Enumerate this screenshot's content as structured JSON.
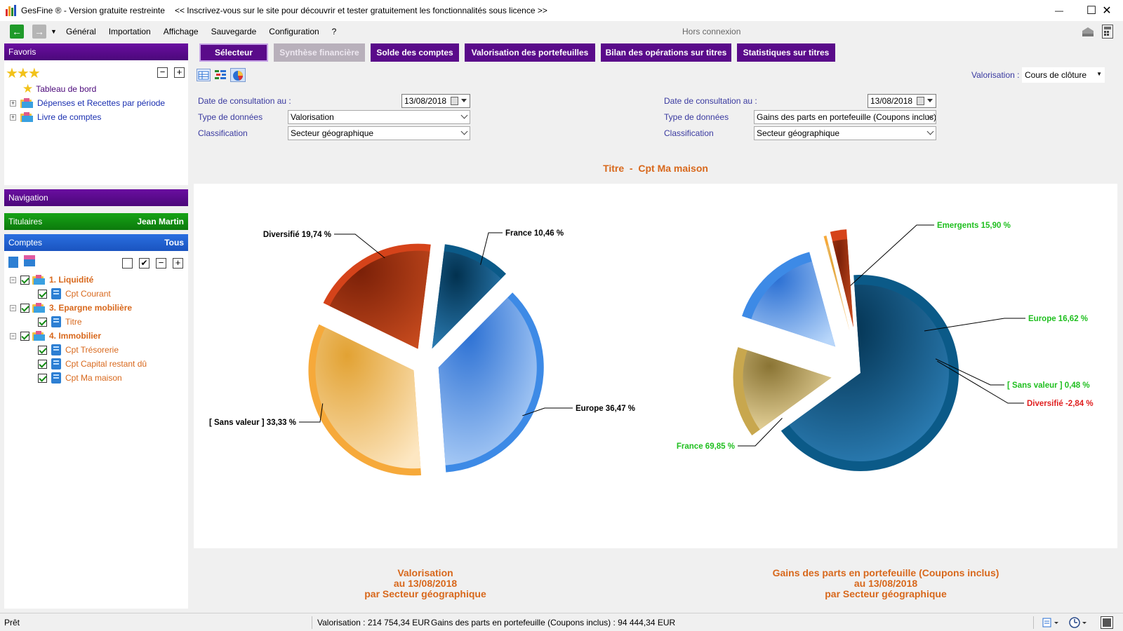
{
  "window": {
    "title": "GesFine ® - Version gratuite restreinte",
    "promo": "<< Inscrivez-vous sur le site pour découvrir et tester gratuitement les fonctionnalités sous licence >>",
    "minimize": "—",
    "maximize": "☐",
    "close": "✕"
  },
  "menu": {
    "items": [
      "Général",
      "Importation",
      "Affichage",
      "Sauvegarde",
      "Configuration",
      "?"
    ],
    "status": "Hors connexion"
  },
  "favoris": {
    "header": "Favoris",
    "items": [
      {
        "label": "Tableau de bord"
      },
      {
        "label": "Dépenses et Recettes par période"
      },
      {
        "label": "Livre de comptes"
      }
    ]
  },
  "navigation": {
    "header": "Navigation"
  },
  "titulaires": {
    "label": "Titulaires",
    "value": "Jean Martin"
  },
  "comptes": {
    "label": "Comptes",
    "value": "Tous",
    "groups": [
      {
        "label": "1. Liquidité",
        "accounts": [
          "Cpt Courant"
        ]
      },
      {
        "label": "3. Epargne mobilière",
        "accounts": [
          "Titre"
        ]
      },
      {
        "label": "4. Immobilier",
        "accounts": [
          "Cpt Trésorerie",
          "Cpt Capital restant dû",
          "Cpt Ma maison"
        ]
      }
    ]
  },
  "tabs": [
    "Sélecteur",
    "Synthèse financière",
    "Solde des comptes",
    "Valorisation des portefeuilles",
    "Bilan des opérations sur titres",
    "Statistiques sur titres"
  ],
  "valorisation": {
    "label": "Valorisation :",
    "value": "Cours de clôture"
  },
  "filters_left": {
    "date_label": "Date de consultation au :",
    "date": "13/08/2018",
    "type_label": "Type de données",
    "type": "Valorisation",
    "class_label": "Classification",
    "class": "Secteur géographique"
  },
  "filters_right": {
    "date_label": "Date de consultation au :",
    "date": "13/08/2018",
    "type_label": "Type de données",
    "type": "Gains des parts en portefeuille (Coupons inclus)",
    "class_label": "Classification",
    "class": "Secteur géographique"
  },
  "chart_title": "Titre  -  Cpt Ma maison",
  "chart_data": [
    {
      "type": "pie",
      "slices": [
        {
          "label": "France",
          "value": 10.46,
          "display": "France  10,46 %",
          "color": "#0b5a88",
          "label_color": "#000000"
        },
        {
          "label": "Europe",
          "value": 36.47,
          "display": "Europe  36,47 %",
          "color": "#3d8ae6",
          "label_color": "#000000"
        },
        {
          "label": "[ Sans valeur ]",
          "value": 33.33,
          "display": "[ Sans valeur ]  33,33 %",
          "color": "#f6a93a",
          "label_color": "#000000"
        },
        {
          "label": "Diversifié",
          "value": 19.74,
          "display": "Diversifié  19,74 %",
          "color": "#d5431a",
          "label_color": "#000000"
        }
      ]
    },
    {
      "type": "pie",
      "slices": [
        {
          "label": "France",
          "value": 69.85,
          "display": "France  69,85 %",
          "color": "#0b5a88",
          "label_color": "#1fbf1f"
        },
        {
          "label": "Emergents",
          "value": 15.9,
          "display": "Emergents  15,90 %",
          "color": "#c8a74e",
          "label_color": "#1fbf1f"
        },
        {
          "label": "Europe",
          "value": 16.62,
          "display": "Europe  16,62 %",
          "color": "#3d8ae6",
          "label_color": "#1fbf1f"
        },
        {
          "label": "[ Sans valeur ]",
          "value": 0.48,
          "display": "[ Sans valeur ]  0,48 %",
          "color": "#f6a93a",
          "label_color": "#1fbf1f"
        },
        {
          "label": "Diversifié",
          "value": -2.84,
          "display": "Diversifié  -2,84 %",
          "color": "#d5431a",
          "label_color": "#e02020"
        }
      ]
    }
  ],
  "captions": {
    "left": [
      "Valorisation",
      "au 13/08/2018",
      "par Secteur géographique"
    ],
    "right": [
      "Gains des parts en portefeuille (Coupons inclus)",
      "au 13/08/2018",
      "par Secteur géographique"
    ]
  },
  "statusbar": {
    "ready": "Prêt",
    "valorisation": "Valorisation : 214 754,34 EUR",
    "gains": "Gains des parts en portefeuille (Coupons inclus) : 94 444,34 EUR"
  }
}
